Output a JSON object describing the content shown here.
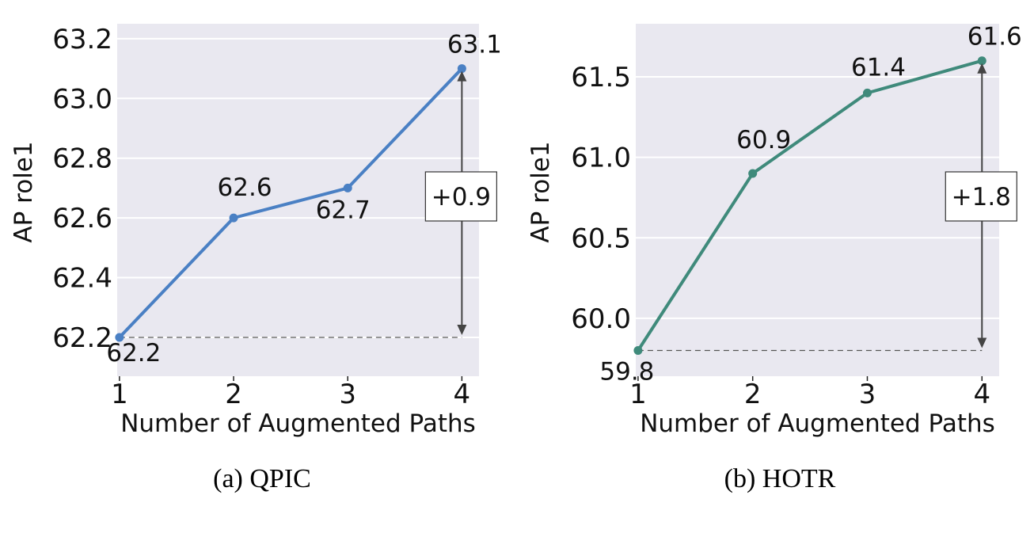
{
  "chart_data": [
    {
      "type": "line",
      "caption": "(a) QPIC",
      "xlabel": "Number of Augmented Paths",
      "ylabel": "AP role1",
      "x": [
        1,
        2,
        3,
        4
      ],
      "x_tick_labels": [
        "1",
        "2",
        "3",
        "4"
      ],
      "xlim": [
        0.98,
        4.15
      ],
      "ylim": [
        62.07,
        63.25
      ],
      "y_ticks": [
        62.2,
        62.4,
        62.6,
        62.8,
        63.0,
        63.2
      ],
      "y_tick_labels": [
        "62.2",
        "62.4",
        "62.6",
        "62.8",
        "63.0",
        "63.2"
      ],
      "series": [
        {
          "values": [
            62.2,
            62.6,
            62.7,
            63.1
          ],
          "color": "#4a80c4"
        }
      ],
      "data_labels": [
        "62.2",
        "62.6",
        "62.7",
        "63.1"
      ],
      "baseline": 62.2,
      "gain_label": "+0.9",
      "grid": true,
      "background": "#e9e8f0"
    },
    {
      "type": "line",
      "caption": "(b) HOTR",
      "xlabel": "Number of Augmented Paths",
      "ylabel": "AP role1",
      "x": [
        1,
        2,
        3,
        4
      ],
      "x_tick_labels": [
        "1",
        "2",
        "3",
        "4"
      ],
      "xlim": [
        0.98,
        4.15
      ],
      "ylim": [
        59.64,
        61.83
      ],
      "y_ticks": [
        60.0,
        60.5,
        61.0,
        61.5
      ],
      "y_tick_labels": [
        "60.0",
        "60.5",
        "61.0",
        "61.5"
      ],
      "series": [
        {
          "values": [
            59.8,
            60.9,
            61.4,
            61.6
          ],
          "color": "#3f8a7b"
        }
      ],
      "data_labels": [
        "59.8",
        "60.9",
        "61.4",
        "61.6"
      ],
      "baseline": 59.8,
      "gain_label": "+1.8",
      "grid": true,
      "background": "#e9e8f0"
    }
  ]
}
